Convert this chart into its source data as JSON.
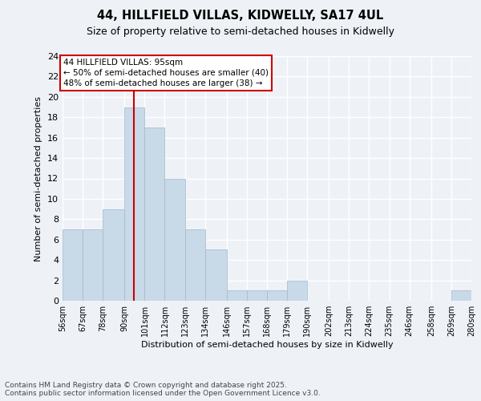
{
  "title1": "44, HILLFIELD VILLAS, KIDWELLY, SA17 4UL",
  "title2": "Size of property relative to semi-detached houses in Kidwelly",
  "xlabel": "Distribution of semi-detached houses by size in Kidwelly",
  "ylabel": "Number of semi-detached properties",
  "footer1": "Contains HM Land Registry data © Crown copyright and database right 2025.",
  "footer2": "Contains public sector information licensed under the Open Government Licence v3.0.",
  "bins": [
    56,
    67,
    78,
    90,
    101,
    112,
    123,
    134,
    146,
    157,
    168,
    179,
    190,
    202,
    213,
    224,
    235,
    246,
    258,
    269,
    280
  ],
  "values": [
    7,
    7,
    9,
    19,
    17,
    12,
    7,
    5,
    1,
    1,
    1,
    2,
    0,
    0,
    0,
    0,
    0,
    0,
    0,
    1
  ],
  "property_size": 95,
  "bar_color": "#c8d9e8",
  "bar_edge_color": "#a0b8cc",
  "vline_color": "#cc0000",
  "vline_x": 95,
  "annotation_text": "44 HILLFIELD VILLAS: 95sqm\n← 50% of semi-detached houses are smaller (40)\n48% of semi-detached houses are larger (38) →",
  "annotation_box_color": "white",
  "annotation_box_edge": "#cc0000",
  "ylim": [
    0,
    24
  ],
  "yticks": [
    0,
    2,
    4,
    6,
    8,
    10,
    12,
    14,
    16,
    18,
    20,
    22,
    24
  ],
  "tick_labels": [
    "56sqm",
    "67sqm",
    "78sqm",
    "90sqm",
    "101sqm",
    "112sqm",
    "123sqm",
    "134sqm",
    "146sqm",
    "157sqm",
    "168sqm",
    "179sqm",
    "190sqm",
    "202sqm",
    "213sqm",
    "224sqm",
    "235sqm",
    "246sqm",
    "258sqm",
    "269sqm",
    "280sqm"
  ],
  "background_color": "#eef2f7",
  "grid_color": "#ffffff",
  "title1_fontsize": 10.5,
  "title2_fontsize": 9,
  "annotation_fontsize": 7.5,
  "ylabel_fontsize": 8,
  "xlabel_fontsize": 8,
  "ytick_fontsize": 8,
  "xtick_fontsize": 7,
  "footer_fontsize": 6.5
}
